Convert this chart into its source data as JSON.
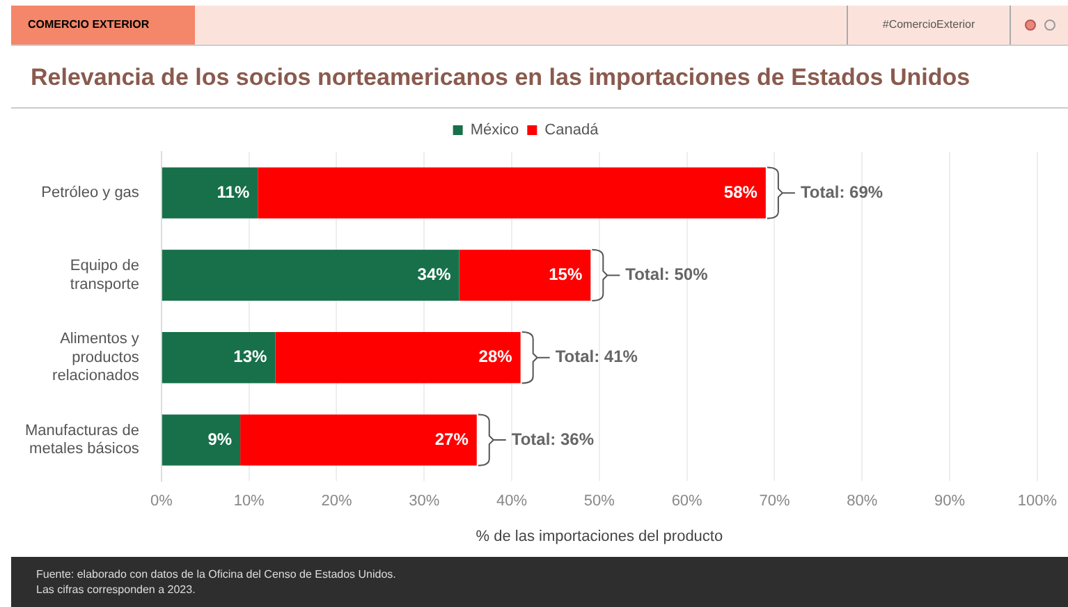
{
  "chart_data": {
    "type": "bar",
    "orientation": "horizontal",
    "stacked": true,
    "title": "Relevancia de los socios norteamericanos en las importaciones de Estados Unidos",
    "xlabel": "% de las importaciones del producto",
    "categories": [
      "Petróleo y gas",
      "Equipo de transporte",
      "Alimentos y productos relacionados",
      "Manufacturas de metales básicos"
    ],
    "series": [
      {
        "name": "México",
        "color": "#17704a",
        "values": [
          11,
          34,
          13,
          9
        ],
        "value_labels": [
          "11%",
          "34%",
          "13%",
          "9%"
        ]
      },
      {
        "name": "Canadá",
        "color": "#ff0000",
        "values": [
          58,
          15,
          28,
          27
        ],
        "value_labels": [
          "58%",
          "15%",
          "28%",
          "27%"
        ]
      }
    ],
    "totals": [
      "Total: 69%",
      "Total: 50%",
      "Total: 41%",
      "Total: 36%"
    ],
    "xlim": [
      0,
      100
    ],
    "xticks": [
      {
        "value": 0,
        "label": "0%"
      },
      {
        "value": 10,
        "label": "10%"
      },
      {
        "value": 20,
        "label": "20%"
      },
      {
        "value": 30,
        "label": "30%"
      },
      {
        "value": 40,
        "label": "40%"
      },
      {
        "value": 50,
        "label": "50%"
      },
      {
        "value": 60,
        "label": "60%"
      },
      {
        "value": 70,
        "label": "70%"
      },
      {
        "value": 80,
        "label": "80%"
      },
      {
        "value": 90,
        "label": "90%"
      },
      {
        "value": 100,
        "label": "100%"
      }
    ],
    "grid": "x",
    "legend": "top",
    "annotations": [
      "COMERCIO EXTERIOR",
      "#ComercioExterior",
      "Fuente: elaborado con datos de la Oficina del Censo de Estados Unidos.",
      "Las cifras corresponden a 2023."
    ]
  }
}
